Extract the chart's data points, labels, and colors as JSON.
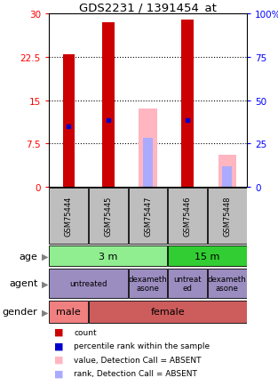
{
  "title": "GDS2231 / 1391454_at",
  "samples": [
    "GSM75444",
    "GSM75445",
    "GSM75447",
    "GSM75446",
    "GSM75448"
  ],
  "left_ylim": [
    0,
    30
  ],
  "right_ylim": [
    0,
    100
  ],
  "left_yticks": [
    0,
    7.5,
    15,
    22.5,
    30
  ],
  "right_yticks": [
    0,
    25,
    50,
    75,
    100
  ],
  "left_yticklabels": [
    "0",
    "7.5",
    "15",
    "22.5",
    "30"
  ],
  "right_yticklabels": [
    "0",
    "25",
    "50",
    "75",
    "100%"
  ],
  "red_bars": [
    23.0,
    28.5,
    0,
    29.0,
    0
  ],
  "blue_markers_left": [
    10.5,
    11.5,
    0,
    11.5,
    0
  ],
  "pink_bars": [
    0,
    0,
    13.5,
    0,
    5.5
  ],
  "lightblue_bars_left": [
    0,
    0,
    8.5,
    0,
    3.5
  ],
  "grid_yticks": [
    7.5,
    15,
    22.5
  ],
  "sample_bg_color": "#BEBEBE",
  "age_light_green": "#90EE90",
  "age_dark_green": "#32CD32",
  "agent_color": "#9B8DC0",
  "male_color": "#F08080",
  "female_color": "#CD5C5C",
  "legend_items": [
    {
      "color": "#CC0000",
      "label": "count"
    },
    {
      "color": "#0000CC",
      "label": "percentile rank within the sample"
    },
    {
      "color": "#FFB6C1",
      "label": "value, Detection Call = ABSENT"
    },
    {
      "color": "#AAAAFF",
      "label": "rank, Detection Call = ABSENT"
    }
  ]
}
